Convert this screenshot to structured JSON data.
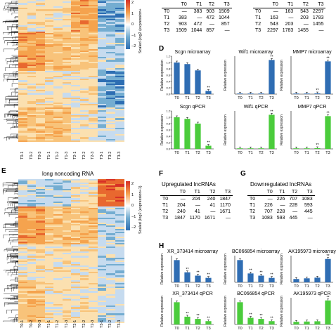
{
  "panels": {
    "top_heatmap": {
      "colorbar": {
        "ticks": [
          "2",
          "1",
          "0",
          "−1",
          "−2"
        ],
        "label": "Scaled (log2 (expression+"
      },
      "columns": [
        "T0-1",
        "T0-2",
        "T0-3",
        "T1-1",
        "T1-2",
        "T1-3",
        "T2-1",
        "T2-2",
        "T2-3",
        "T3-1",
        "T3-2",
        "T3-3"
      ]
    },
    "top_tables": {
      "left": {
        "header": [
          "",
          "T0",
          "T1",
          "T2",
          "T3"
        ],
        "rows": [
          [
            "T0",
            "—",
            "383",
            "903",
            "1509"
          ],
          [
            "T1",
            "383",
            "—",
            "472",
            "1044"
          ],
          [
            "T2",
            "903",
            "472",
            "—",
            "857"
          ],
          [
            "T3",
            "1509",
            "1044",
            "857",
            "—"
          ]
        ]
      },
      "right": {
        "header": [
          "",
          "T0",
          "T1",
          "T2",
          "T3"
        ],
        "rows": [
          [
            "T0",
            "—",
            "163",
            "543",
            "2297"
          ],
          [
            "T1",
            "163",
            "—",
            "203",
            "1783"
          ],
          [
            "T2",
            "543",
            "203",
            "—",
            "1455"
          ],
          [
            "T3",
            "2297",
            "1783",
            "1455",
            "—"
          ]
        ]
      }
    },
    "D": {
      "letter": "D",
      "ylabel": "Relative expression",
      "charts": [
        {
          "title": "Scgn microarray",
          "color": "#2f6db3"
        },
        {
          "title": "Wif1 microarray",
          "color": "#2f6db3"
        },
        {
          "title": "MMP7 microarray",
          "color": "#2f6db3"
        },
        {
          "title": "Scgn qPCR",
          "color": "#4bcc3c"
        },
        {
          "title": "Wif1 qPCR",
          "color": "#4bcc3c"
        },
        {
          "title": "MMP7 qPCR",
          "color": "#4bcc3c"
        }
      ]
    },
    "E": {
      "letter": "E",
      "title": "long noncoding RNA",
      "colorbar": {
        "ticks": [
          "2",
          "1",
          "0",
          "−1",
          "−2"
        ],
        "label": "Scaled (log2 (expression+1)"
      },
      "columns": [
        "T0-1",
        "T0-2",
        "T0-3",
        "T1-1",
        "T1-2",
        "T1-3",
        "T2-1",
        "T2-2",
        "T2-3",
        "T3-1",
        "T3-2",
        "T3-3"
      ]
    },
    "F": {
      "letter": "F",
      "title": "Upregulated lncRNAs",
      "header": [
        "",
        "T0",
        "T1",
        "T2",
        "T3"
      ],
      "rows": [
        [
          "T0",
          "—",
          "204",
          "240",
          "1847"
        ],
        [
          "T1",
          "204",
          "—",
          "41",
          "1170"
        ],
        [
          "T2",
          "240",
          "41",
          "—",
          "1671"
        ],
        [
          "T3",
          "1847",
          "1170",
          "1671",
          "—"
        ]
      ]
    },
    "G": {
      "letter": "G",
      "title": "Downregulated lncRNAs",
      "header": [
        "",
        "T0",
        "T1",
        "T2",
        "T3"
      ],
      "rows": [
        [
          "T0",
          "—",
          "226",
          "707",
          "1083"
        ],
        [
          "T1",
          "226",
          "—",
          "228",
          "593"
        ],
        [
          "T2",
          "707",
          "228",
          "—",
          "445"
        ],
        [
          "T3",
          "1083",
          "593",
          "445",
          "—"
        ]
      ]
    },
    "H": {
      "letter": "H",
      "ylabel": "Relative expression",
      "charts": [
        {
          "title": "XR_373414 microarray",
          "color": "#2f6db3"
        },
        {
          "title": "BC066854 microarray",
          "color": "#2f6db3"
        },
        {
          "title": "AK195973 microarray",
          "color": "#2f6db3"
        },
        {
          "title": "XR_373414 qPCR",
          "color": "#4bcc3c"
        },
        {
          "title": "BC066854 qPCR",
          "color": "#4bcc3c"
        },
        {
          "title": "AK195973 qPCR",
          "color": "#4bcc3c"
        }
      ]
    }
  },
  "chart_data": [
    {
      "type": "bar",
      "title": "Scgn microarray",
      "categories": [
        "T0",
        "T1",
        "T2",
        "T3"
      ],
      "values": [
        1.0,
        0.95,
        0.75,
        0.1
      ],
      "ylim": [
        0,
        1.2
      ],
      "yticks": [
        "0.0",
        "0.2",
        "0.4",
        "0.6",
        "0.8",
        "1.0",
        "1.2"
      ],
      "annotations": [
        "",
        "",
        "",
        "**"
      ]
    },
    {
      "type": "bar",
      "title": "Wif1 microarray",
      "categories": [
        "T0",
        "T1",
        "T2",
        "T3"
      ],
      "values": [
        1,
        1,
        1,
        180
      ],
      "ylim": [
        0,
        200
      ],
      "yticks": [],
      "annotations": [
        "",
        "",
        "",
        "**"
      ]
    },
    {
      "type": "bar",
      "title": "MMP7 microarray",
      "categories": [
        "T0",
        "T1",
        "T2",
        "T3"
      ],
      "values": [
        1,
        1,
        2,
        95
      ],
      "ylim": [
        0,
        110
      ],
      "yticks": [],
      "annotations": [
        "",
        "",
        "**",
        "**"
      ]
    },
    {
      "type": "bar",
      "title": "Scgn qPCR",
      "categories": [
        "T0",
        "T1",
        "T2",
        "T3"
      ],
      "values": [
        1.0,
        0.95,
        0.8,
        0.1
      ],
      "ylim": [
        0,
        1.2
      ],
      "yticks": [
        "0.0",
        "0.2",
        "0.4",
        "0.6",
        "0.8",
        "1.0",
        "1.2"
      ],
      "annotations": [
        "",
        "",
        "",
        "**"
      ]
    },
    {
      "type": "bar",
      "title": "Wif1 qPCR",
      "categories": [
        "T0",
        "T1",
        "T2",
        "T3"
      ],
      "values": [
        1,
        1,
        1,
        180
      ],
      "ylim": [
        0,
        200
      ],
      "yticks": [],
      "annotations": [
        "",
        "",
        "",
        "**"
      ]
    },
    {
      "type": "bar",
      "title": "MMP7 qPCR",
      "categories": [
        "T0",
        "T1",
        "T2",
        "T3"
      ],
      "values": [
        1,
        1,
        2,
        95
      ],
      "ylim": [
        0,
        110
      ],
      "yticks": [],
      "annotations": [
        "",
        "",
        "**",
        "**"
      ]
    },
    {
      "type": "bar",
      "title": "XR_373414 microarray",
      "categories": [
        "T0",
        "T1",
        "T2",
        "T3"
      ],
      "values": [
        1.0,
        0.45,
        0.3,
        0.2
      ],
      "ylim": [
        0,
        1.2
      ],
      "yticks": [],
      "annotations": [
        "",
        "**",
        "**",
        "**"
      ]
    },
    {
      "type": "bar",
      "title": "BC066854 microarray",
      "categories": [
        "T0",
        "T1",
        "T2",
        "T3"
      ],
      "values": [
        1.0,
        0.4,
        0.3,
        0.2
      ],
      "ylim": [
        0,
        1.2
      ],
      "yticks": [],
      "annotations": [
        "",
        "**",
        "**",
        "**"
      ]
    },
    {
      "type": "bar",
      "title": "AK195973 microarray",
      "categories": [
        "T0",
        "T1",
        "T2",
        "T3"
      ],
      "values": [
        1,
        1.2,
        1.4,
        7
      ],
      "ylim": [
        0,
        8
      ],
      "yticks": [],
      "annotations": [
        "",
        "",
        "",
        "**"
      ]
    },
    {
      "type": "bar",
      "title": "XR_373414 qPCR",
      "categories": [
        "T0",
        "T1",
        "T2",
        "T3"
      ],
      "values": [
        1.0,
        0.35,
        0.25,
        0.15
      ],
      "ylim": [
        0,
        1.2
      ],
      "yticks": [],
      "annotations": [
        "",
        "**",
        "**",
        "**"
      ]
    },
    {
      "type": "bar",
      "title": "BC066854 qPCR",
      "categories": [
        "T0",
        "T1",
        "T2",
        "T3"
      ],
      "values": [
        1.0,
        0.3,
        0.25,
        0.15
      ],
      "ylim": [
        0,
        1.2
      ],
      "yticks": [],
      "annotations": [
        "",
        "**",
        "**",
        "**"
      ]
    },
    {
      "type": "bar",
      "title": "AK195973 qPCR",
      "categories": [
        "T0",
        "T1",
        "T2",
        "T3"
      ],
      "values": [
        1,
        1.1,
        1.2,
        9
      ],
      "ylim": [
        0,
        10
      ],
      "yticks": [],
      "annotations": [
        "",
        "",
        "",
        "**"
      ]
    }
  ]
}
